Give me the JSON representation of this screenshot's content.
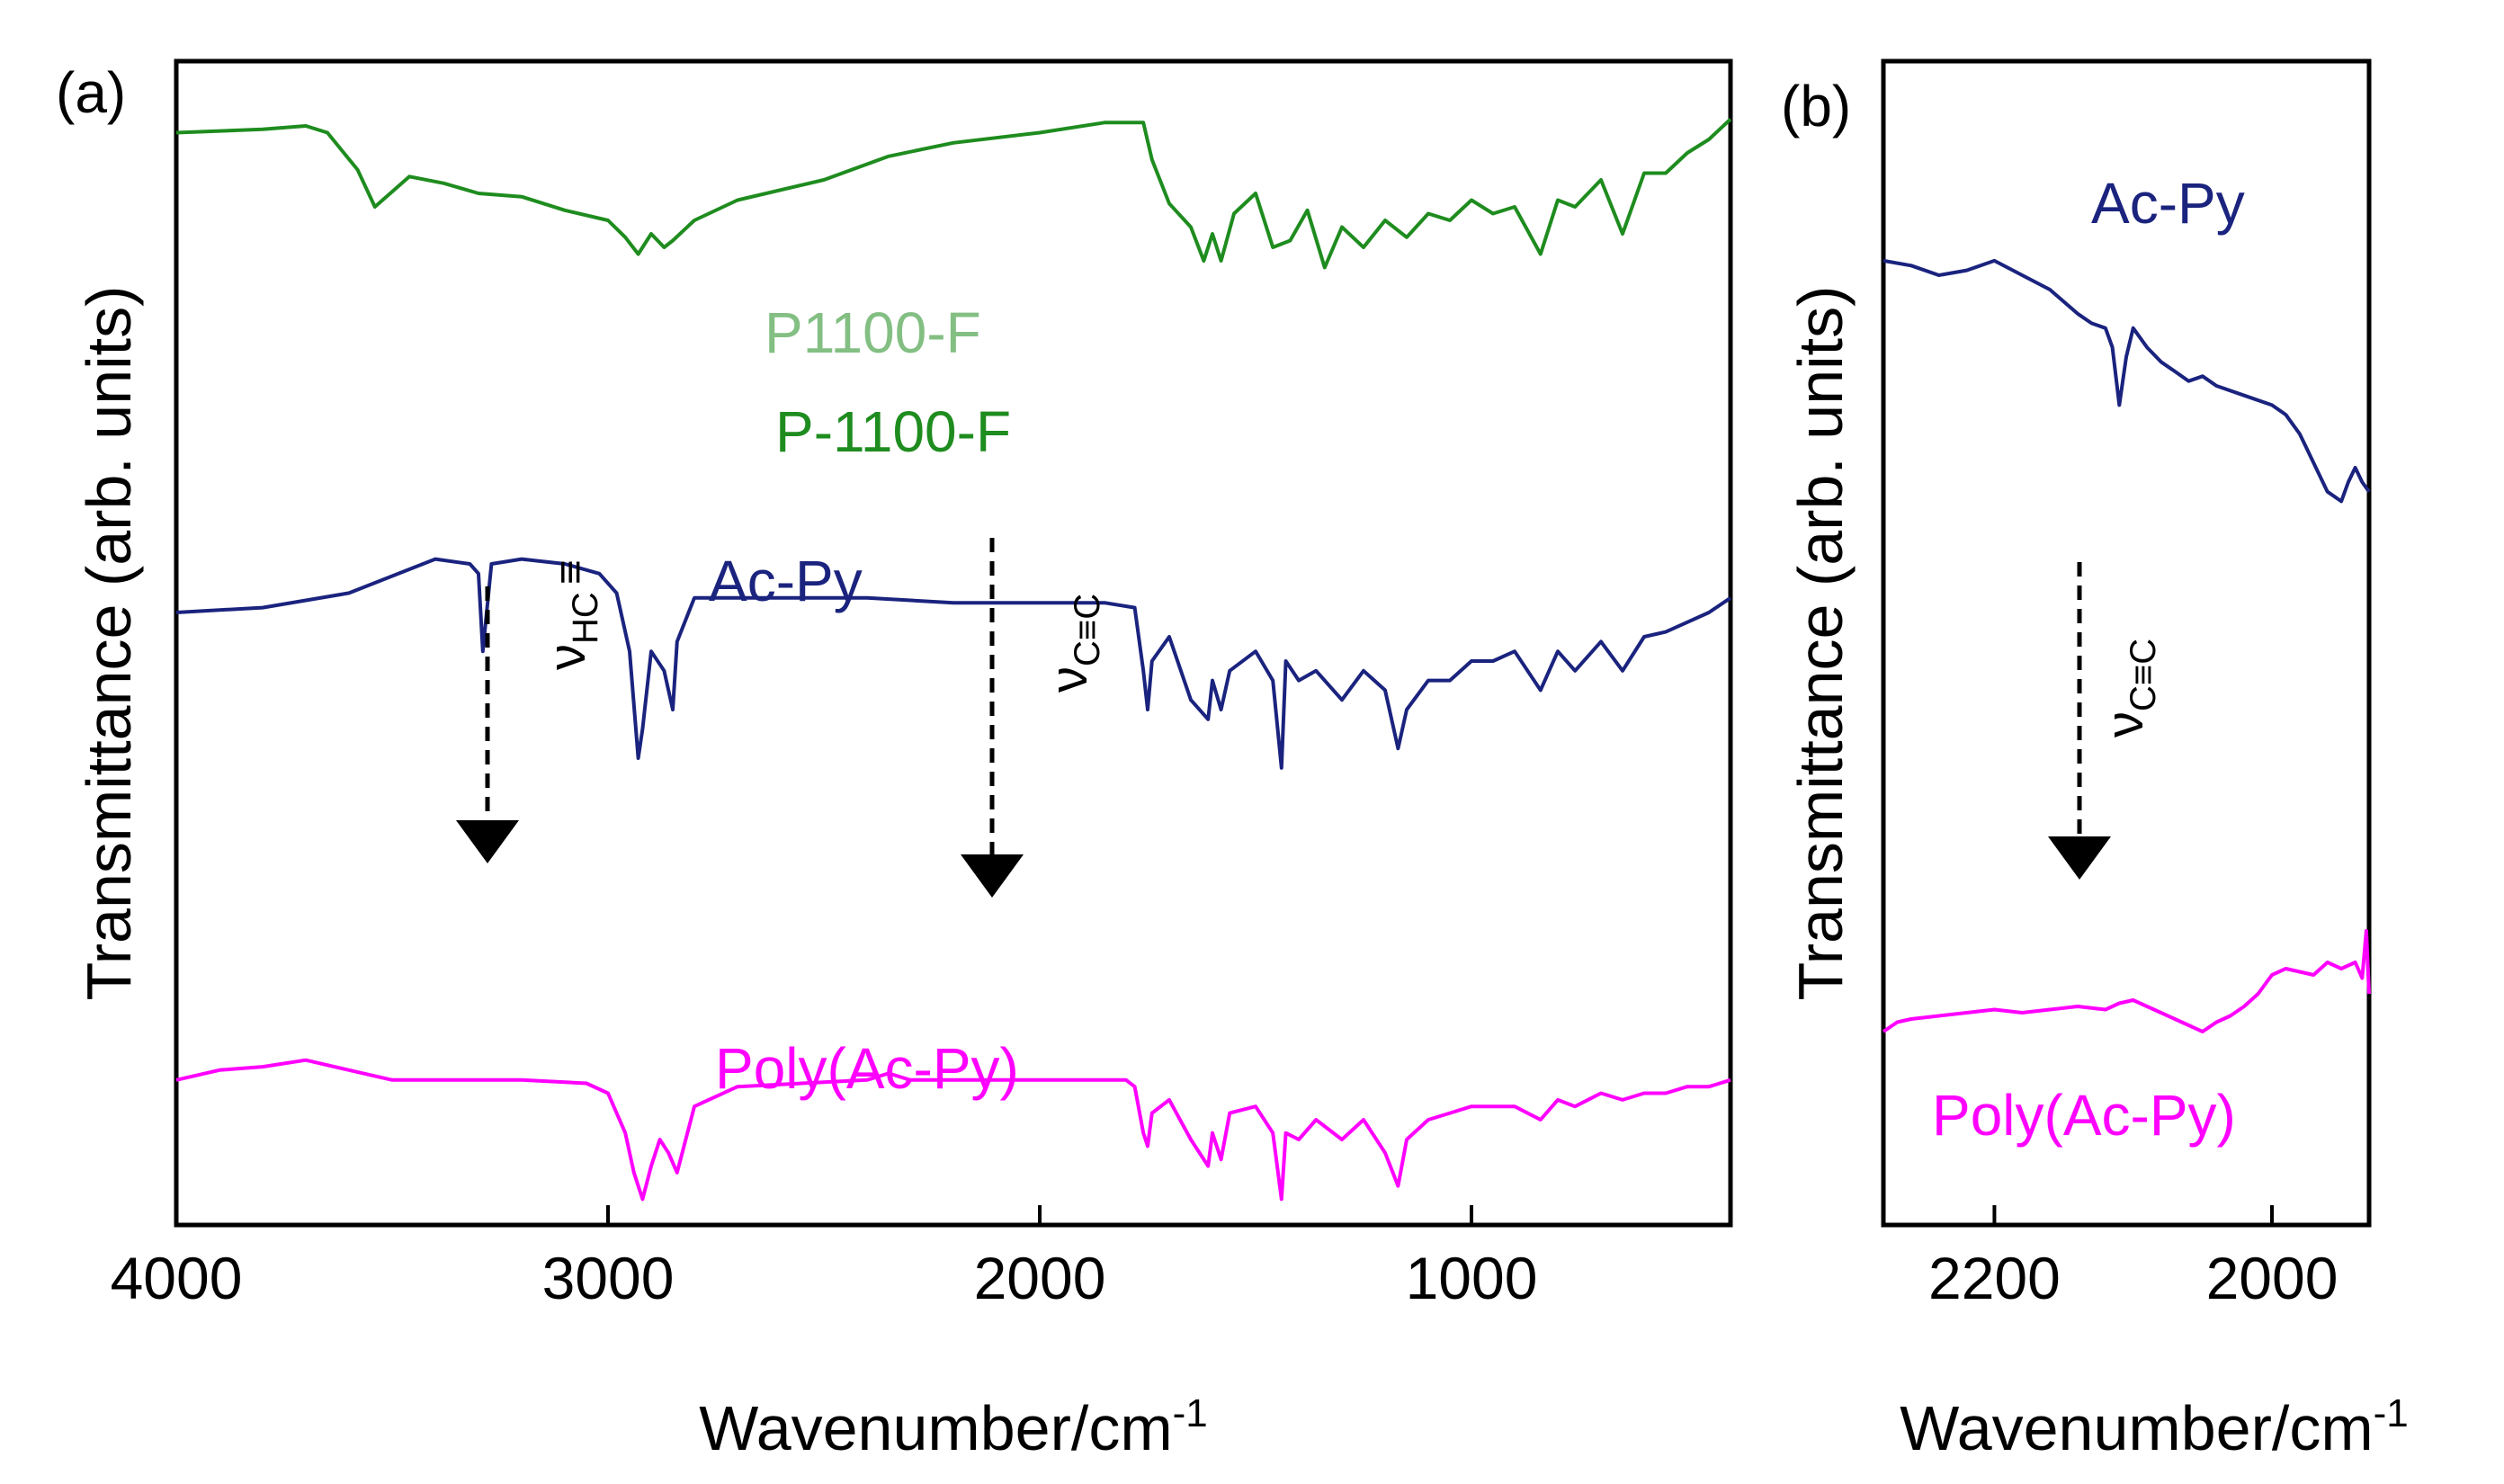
{
  "chart_data": [
    {
      "panel_label": "(a)",
      "type": "line",
      "xlabel": "Wavenumber/cm",
      "xlabel_sup": "-1",
      "ylabel": "Transmittance (arb. units)",
      "xlim": [
        4000,
        400
      ],
      "x_reversed": true,
      "x_ticks": [
        4000,
        3000,
        2000,
        1000
      ],
      "y_ticks": [],
      "grid": false,
      "series": [
        {
          "name": "P1100-F",
          "label_overlay": "P-1100-F",
          "color": "#1e8c1e",
          "x": [
            4000,
            3800,
            3700,
            3650,
            3580,
            3540,
            3460,
            3380,
            3300,
            3200,
            3100,
            3000,
            2960,
            2930,
            2900,
            2870,
            2850,
            2800,
            2700,
            2500,
            2350,
            2200,
            2000,
            1850,
            1760,
            1740,
            1700,
            1650,
            1620,
            1600,
            1580,
            1550,
            1500,
            1460,
            1420,
            1380,
            1340,
            1300,
            1250,
            1200,
            1150,
            1100,
            1050,
            1000,
            950,
            900,
            840,
            800,
            760,
            700,
            650,
            600,
            550,
            500,
            450,
            400
          ],
          "y": [
            86,
            87,
            88,
            86,
            75,
            64,
            73,
            71,
            68,
            67,
            63,
            60,
            55,
            50,
            56,
            52,
            54,
            60,
            66,
            72,
            79,
            83,
            86,
            89,
            89,
            78,
            65,
            58,
            48,
            56,
            48,
            62,
            68,
            52,
            54,
            63,
            46,
            58,
            52,
            60,
            55,
            62,
            60,
            66,
            62,
            64,
            50,
            66,
            64,
            72,
            56,
            74,
            74,
            80,
            84,
            90
          ]
        },
        {
          "name": "Ac-Py",
          "color": "#1a237e",
          "x": [
            4000,
            3800,
            3600,
            3400,
            3320,
            3300,
            3290,
            3270,
            3200,
            3100,
            3020,
            2980,
            2950,
            2930,
            2920,
            2900,
            2870,
            2850,
            2840,
            2800,
            2700,
            2400,
            2200,
            2120,
            2000,
            1850,
            1780,
            1760,
            1750,
            1740,
            1700,
            1650,
            1610,
            1600,
            1580,
            1560,
            1500,
            1460,
            1440,
            1430,
            1400,
            1360,
            1300,
            1250,
            1200,
            1170,
            1150,
            1100,
            1050,
            1000,
            950,
            900,
            840,
            800,
            760,
            700,
            650,
            600,
            550,
            500,
            450,
            400
          ],
          "y": [
            60,
            61,
            64,
            71,
            70,
            68,
            52,
            70,
            71,
            70,
            68,
            64,
            52,
            30,
            36,
            52,
            48,
            40,
            54,
            63,
            63,
            63,
            62,
            62,
            62,
            62,
            61,
            48,
            40,
            50,
            55,
            42,
            38,
            46,
            40,
            48,
            52,
            46,
            28,
            50,
            46,
            48,
            42,
            48,
            44,
            32,
            40,
            46,
            46,
            50,
            50,
            52,
            44,
            52,
            48,
            54,
            48,
            55,
            56,
            58,
            60,
            63
          ]
        },
        {
          "name": "Poly(Ac-Py)",
          "color": "#ff00ff",
          "x": [
            4000,
            3900,
            3800,
            3700,
            3600,
            3500,
            3400,
            3300,
            3200,
            3050,
            3000,
            2960,
            2940,
            2920,
            2900,
            2880,
            2860,
            2840,
            2800,
            2700,
            2400,
            2350,
            2300,
            2200,
            2000,
            1800,
            1780,
            1760,
            1750,
            1740,
            1700,
            1650,
            1610,
            1600,
            1580,
            1560,
            1500,
            1460,
            1440,
            1430,
            1400,
            1360,
            1300,
            1250,
            1200,
            1170,
            1150,
            1100,
            1050,
            1000,
            950,
            900,
            840,
            800,
            760,
            700,
            650,
            600,
            550,
            500,
            450,
            400
          ],
          "y": [
            40,
            43,
            44,
            46,
            43,
            40,
            40,
            40,
            40,
            39,
            36,
            24,
            12,
            4,
            14,
            22,
            18,
            12,
            32,
            38,
            40,
            42,
            40,
            40,
            40,
            40,
            38,
            24,
            20,
            30,
            34,
            22,
            14,
            24,
            16,
            30,
            32,
            24,
            4,
            24,
            22,
            28,
            22,
            28,
            18,
            8,
            22,
            28,
            30,
            32,
            32,
            32,
            28,
            34,
            32,
            36,
            34,
            36,
            36,
            38,
            38,
            40
          ]
        }
      ],
      "annotations": [
        {
          "text": "ν",
          "subscript": "HC",
          "suffix": "≡",
          "at_wavenumber": 3300,
          "arrow": "down"
        },
        {
          "text": "ν",
          "subscript": "C≡C",
          "at_wavenumber": 2110,
          "arrow": "down"
        }
      ]
    },
    {
      "panel_label": "(b)",
      "type": "line",
      "xlabel": "Wavenumber/cm",
      "xlabel_sup": "-1",
      "ylabel": "Transmittance (arb. units)",
      "xlim": [
        2280,
        1930
      ],
      "x_reversed": true,
      "x_ticks": [
        2200,
        2000
      ],
      "y_ticks": [],
      "grid": false,
      "series": [
        {
          "name": "Ac-Py",
          "color": "#1a237e",
          "x": [
            2280,
            2260,
            2240,
            2220,
            2200,
            2180,
            2160,
            2140,
            2130,
            2120,
            2115,
            2110,
            2105,
            2100,
            2090,
            2080,
            2070,
            2060,
            2050,
            2040,
            2020,
            2000,
            1990,
            1980,
            1970,
            1960,
            1950,
            1945,
            1940,
            1935,
            1930
          ],
          "y": [
            86,
            85,
            83,
            84,
            86,
            83,
            80,
            75,
            73,
            72,
            68,
            56,
            66,
            72,
            68,
            65,
            63,
            61,
            62,
            60,
            58,
            56,
            54,
            50,
            44,
            38,
            36,
            40,
            43,
            40,
            38
          ]
        },
        {
          "name": "Poly(Ac-Py)",
          "color": "#ff00ff",
          "x": [
            2280,
            2270,
            2260,
            2240,
            2220,
            2200,
            2180,
            2160,
            2140,
            2120,
            2110,
            2100,
            2090,
            2080,
            2070,
            2060,
            2050,
            2040,
            2030,
            2020,
            2010,
            2000,
            1990,
            1980,
            1970,
            1960,
            1950,
            1940,
            1935,
            1932,
            1930
          ],
          "y": [
            8,
            11,
            12,
            13,
            14,
            15,
            14,
            15,
            16,
            15,
            17,
            18,
            16,
            14,
            12,
            10,
            8,
            11,
            13,
            16,
            20,
            26,
            28,
            27,
            26,
            30,
            28,
            30,
            25,
            40,
            20
          ]
        }
      ],
      "annotations": [
        {
          "text": "ν",
          "subscript": "C≡C",
          "at_wavenumber": 2110,
          "arrow": "down"
        }
      ]
    }
  ]
}
